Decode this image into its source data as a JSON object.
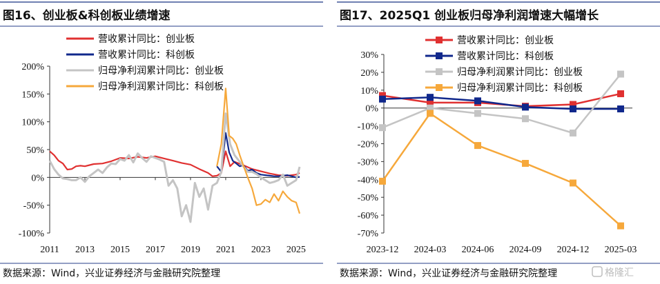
{
  "left_panel": {
    "title": "图16、创业板&科创板业绩增速",
    "source": "数据来源：Wind，兴业证券经济与金融研究院整理"
  },
  "right_panel": {
    "title": "图17、2025Q1 创业板归母净利润增速大幅增长",
    "source": "数据来源：Wind，兴业证券经济与金融研究院整理"
  },
  "watermark": "格隆汇",
  "colors": {
    "red": "#e03030",
    "navy": "#10288c",
    "gray": "#c4c4c4",
    "orange": "#f6a83b"
  },
  "chart_data": [
    {
      "type": "line",
      "x_start": 2011,
      "x_ticks": [
        "2011",
        "2013",
        "2015",
        "2017",
        "2019",
        "2021",
        "2023",
        "2025"
      ],
      "xlim": [
        2011,
        2025.2
      ],
      "ylim": [
        -100,
        200
      ],
      "y_ticks": [
        "200%",
        "150%",
        "100%",
        "50%",
        "0%",
        "-50%",
        "-100%"
      ],
      "legend_position": "top-left",
      "series": [
        {
          "name": "营收累计同比：创业板",
          "color": "red",
          "x": [
            2011,
            2011.25,
            2011.5,
            2011.75,
            2012,
            2012.25,
            2012.5,
            2012.75,
            2013,
            2013.5,
            2014,
            2014.5,
            2015,
            2015.5,
            2016,
            2016.5,
            2017,
            2017.5,
            2018,
            2018.5,
            2019,
            2019.5,
            2020,
            2020.25,
            2020.5,
            2020.75,
            2021,
            2021.25,
            2021.5,
            2021.75,
            2022,
            2022.5,
            2023,
            2023.5,
            2024,
            2024.5,
            2024.75,
            2025,
            2025.2
          ],
          "y": [
            47,
            40,
            30,
            25,
            14,
            15,
            20,
            21,
            20,
            24,
            25,
            29,
            35,
            34,
            37,
            35,
            38,
            34,
            30,
            26,
            23,
            15,
            8,
            2,
            3,
            8,
            47,
            20,
            28,
            25,
            22,
            15,
            11,
            7,
            4,
            3,
            4,
            5,
            8
          ]
        },
        {
          "name": "营收累计同比：科创板",
          "color": "navy",
          "x": [
            2020.5,
            2020.75,
            2021,
            2021.2,
            2021.4,
            2021.6,
            2021.8,
            2022,
            2022.25,
            2022.5,
            2022.75,
            2023,
            2023.25,
            2023.5,
            2023.75,
            2024,
            2024.25,
            2024.5,
            2024.75,
            2025,
            2025.2
          ],
          "y": [
            20,
            10,
            80,
            45,
            30,
            25,
            20,
            22,
            12,
            14,
            8,
            5,
            4,
            3,
            2,
            2,
            3,
            4,
            2,
            0,
            1
          ]
        },
        {
          "name": "归母净利润累计同比：创业板",
          "color": "gray",
          "x": [
            2011,
            2011.25,
            2011.5,
            2011.75,
            2012,
            2012.25,
            2012.5,
            2012.75,
            2013,
            2013.25,
            2013.5,
            2013.75,
            2014,
            2014.25,
            2014.5,
            2014.75,
            2015,
            2015.25,
            2015.5,
            2015.75,
            2016,
            2016.25,
            2016.5,
            2016.75,
            2017,
            2017.25,
            2017.5,
            2017.75,
            2018,
            2018.25,
            2018.5,
            2018.75,
            2019,
            2019.25,
            2019.5,
            2019.75,
            2020,
            2020.25,
            2020.5,
            2020.75,
            2021,
            2021.25,
            2021.5,
            2021.75,
            2022,
            2022.25,
            2022.5,
            2022.75,
            2023,
            2023.25,
            2023.5,
            2023.75,
            2024,
            2024.25,
            2024.5,
            2024.75,
            2025,
            2025.2
          ],
          "y": [
            30,
            15,
            5,
            -2,
            -3,
            -5,
            -5,
            0,
            -8,
            2,
            8,
            14,
            8,
            18,
            25,
            24,
            33,
            30,
            40,
            27,
            43,
            35,
            28,
            38,
            35,
            32,
            28,
            -15,
            -5,
            -20,
            -70,
            -50,
            -80,
            -10,
            -35,
            -20,
            -58,
            -15,
            -10,
            10,
            115,
            60,
            40,
            30,
            20,
            10,
            10,
            6,
            0,
            -5,
            -10,
            -8,
            -5,
            5,
            -15,
            -10,
            -5,
            19
          ]
        },
        {
          "name": "归母净利润累计同比：科创板",
          "color": "orange",
          "x": [
            2020.5,
            2020.75,
            2021,
            2021.2,
            2021.4,
            2021.6,
            2021.8,
            2022,
            2022.25,
            2022.5,
            2022.75,
            2023,
            2023.25,
            2023.5,
            2023.75,
            2024,
            2024.25,
            2024.5,
            2024.75,
            2025,
            2025.2
          ],
          "y": [
            20,
            60,
            160,
            75,
            70,
            60,
            40,
            22,
            0,
            -20,
            -50,
            -48,
            -40,
            -45,
            -30,
            -42,
            -25,
            -35,
            -42,
            -45,
            -65
          ]
        }
      ]
    },
    {
      "type": "line",
      "categories": [
        "2023-12",
        "2024-03",
        "2024-06",
        "2024-09",
        "2024-12",
        "2025-03"
      ],
      "ylim": [
        -70,
        30
      ],
      "y_ticks": [
        "30%",
        "20%",
        "10%",
        "0%",
        "-10%",
        "-20%",
        "-30%",
        "-40%",
        "-50%",
        "-60%",
        "-70%"
      ],
      "legend_position": "top-left",
      "series": [
        {
          "name": "营收累计同比：创业板",
          "color": "red",
          "marker": "square",
          "values": [
            7,
            3,
            3,
            1,
            2,
            8
          ]
        },
        {
          "name": "营收累计同比：科创板",
          "color": "navy",
          "marker": "square",
          "values": [
            5,
            6,
            4,
            0.5,
            -0.5,
            -0.5
          ]
        },
        {
          "name": "归母净利润累计同比：创业板",
          "color": "gray",
          "marker": "square",
          "values": [
            -11,
            0,
            -3,
            -6,
            -14,
            19
          ]
        },
        {
          "name": "归母净利润累计同比：科创板",
          "color": "orange",
          "marker": "square",
          "values": [
            -41,
            -3,
            -21,
            -31,
            -42,
            -66
          ]
        }
      ]
    }
  ]
}
